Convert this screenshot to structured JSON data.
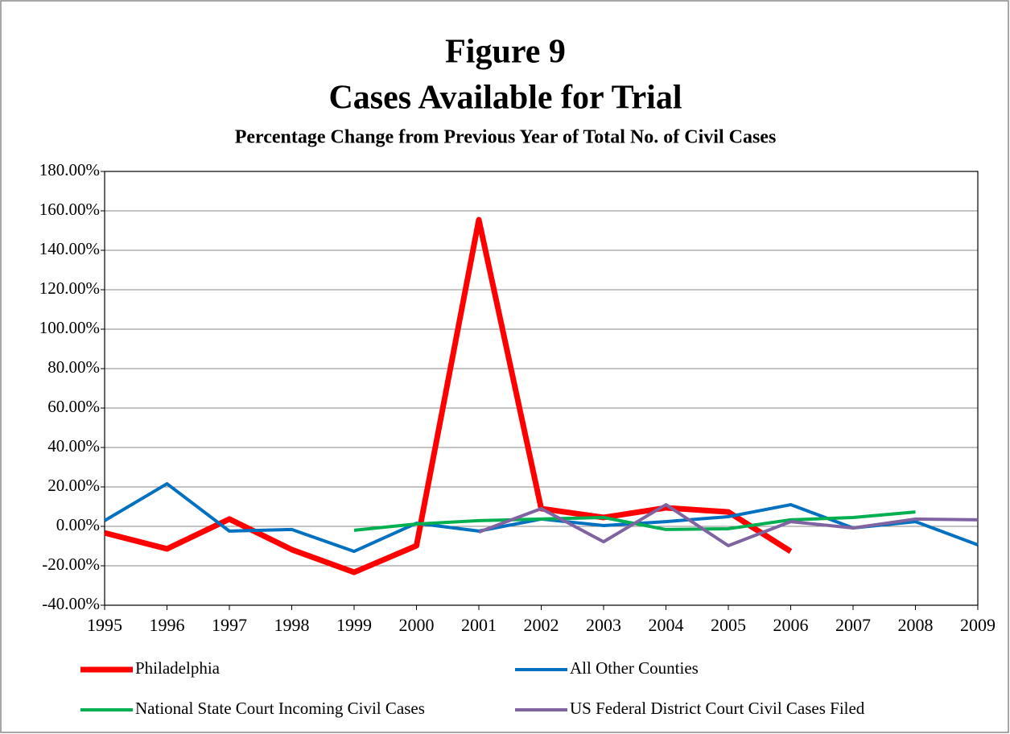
{
  "chart_data": {
    "type": "line",
    "title": [
      "Figure 9",
      "Cases Available for Trial"
    ],
    "subtitle": "Percentage Change from Previous Year of Total No. of Civil Cases",
    "categories": [
      "1995",
      "1996",
      "1997",
      "1998",
      "1999",
      "2000",
      "2001",
      "2002",
      "2003",
      "2004",
      "2005",
      "2006",
      "2007",
      "2008",
      "2009"
    ],
    "series": [
      {
        "name": "Philadelphia",
        "color": "#ff0000",
        "values": [
          -3.3,
          -11.4,
          3.7,
          -11.8,
          -23.3,
          -9.8,
          155.5,
          9,
          4.5,
          9.4,
          7.3,
          -12.7,
          null,
          null,
          null
        ]
      },
      {
        "name": "All Other Counties",
        "color": "#0070c0",
        "values": [
          2.9,
          21.6,
          -2.4,
          -1.6,
          -12.7,
          1.6,
          -2.4,
          3.7,
          0.4,
          2.4,
          4.9,
          11,
          -0.8,
          2.4,
          -9.4
        ]
      },
      {
        "name": "National State Court Incoming Civil Cases",
        "color": "#00b050",
        "values": [
          null,
          null,
          null,
          null,
          -2,
          1.2,
          2.9,
          3.7,
          4.5,
          -1.6,
          -1.2,
          3.3,
          4.5,
          7.3,
          null
        ]
      },
      {
        "name": "US Federal District Court Civil Cases Filed",
        "color": "#8064a2",
        "values": [
          null,
          null,
          null,
          null,
          null,
          null,
          -2.9,
          9,
          -7.8,
          11,
          -9.8,
          2.4,
          -0.8,
          3.7,
          3.3
        ]
      }
    ],
    "ylim": [
      -40,
      180
    ],
    "yticks": [
      {
        "value": -40,
        "label": "-40.00%"
      },
      {
        "value": -20,
        "label": "-20.00%"
      },
      {
        "value": 0,
        "label": "0.00%"
      },
      {
        "value": 20,
        "label": "20.00%"
      },
      {
        "value": 40,
        "label": "40.00%"
      },
      {
        "value": 60,
        "label": "60.00%"
      },
      {
        "value": 80,
        "label": "80.00%"
      },
      {
        "value": 100,
        "label": "100.00%"
      },
      {
        "value": 120,
        "label": "120.00%"
      },
      {
        "value": 140,
        "label": "140.00%"
      },
      {
        "value": 160,
        "label": "160.00%"
      },
      {
        "value": 180,
        "label": "180.00%"
      }
    ],
    "grid": true,
    "legend": "bottom"
  }
}
